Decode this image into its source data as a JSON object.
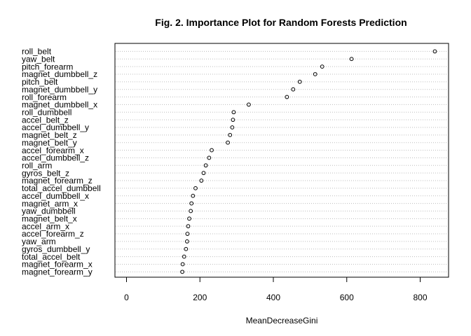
{
  "chart_data": {
    "type": "scatter",
    "title": "Fig. 2. Importance Plot for Random Forests Prediction",
    "xlabel": "MeanDecreaseGini",
    "ylabel": "",
    "xlim": [
      -30,
      855
    ],
    "x_ticks": [
      0,
      200,
      400,
      600,
      800
    ],
    "grid": "dotted horizontal lines per variable",
    "variables": [
      {
        "name": "roll_belt",
        "value": 840
      },
      {
        "name": "yaw_belt",
        "value": 613
      },
      {
        "name": "pitch_forearm",
        "value": 533
      },
      {
        "name": "magnet_dumbbell_z",
        "value": 514
      },
      {
        "name": "pitch_belt",
        "value": 472
      },
      {
        "name": "magnet_dumbbell_y",
        "value": 454
      },
      {
        "name": "roll_forearm",
        "value": 437
      },
      {
        "name": "magnet_dumbbell_x",
        "value": 333
      },
      {
        "name": "roll_dumbbell",
        "value": 292
      },
      {
        "name": "accel_belt_z",
        "value": 290
      },
      {
        "name": "accel_dumbbell_y",
        "value": 288
      },
      {
        "name": "magnet_belt_z",
        "value": 282
      },
      {
        "name": "magnet_belt_y",
        "value": 276
      },
      {
        "name": "accel_forearm_x",
        "value": 232
      },
      {
        "name": "accel_dumbbell_z",
        "value": 225
      },
      {
        "name": "roll_arm",
        "value": 216
      },
      {
        "name": "gyros_belt_z",
        "value": 210
      },
      {
        "name": "magnet_forearm_z",
        "value": 204
      },
      {
        "name": "total_accel_dumbbell",
        "value": 188
      },
      {
        "name": "accel_dumbbell_x",
        "value": 181
      },
      {
        "name": "magnet_arm_x",
        "value": 177
      },
      {
        "name": "yaw_dumbbell",
        "value": 175
      },
      {
        "name": "magnet_belt_x",
        "value": 171
      },
      {
        "name": "accel_arm_x",
        "value": 168
      },
      {
        "name": "accel_forearm_z",
        "value": 166
      },
      {
        "name": "yaw_arm",
        "value": 165
      },
      {
        "name": "gyros_dumbbell_y",
        "value": 162
      },
      {
        "name": "total_accel_belt",
        "value": 157
      },
      {
        "name": "magnet_forearm_x",
        "value": 153
      },
      {
        "name": "magnet_forearm_y",
        "value": 152
      }
    ]
  }
}
